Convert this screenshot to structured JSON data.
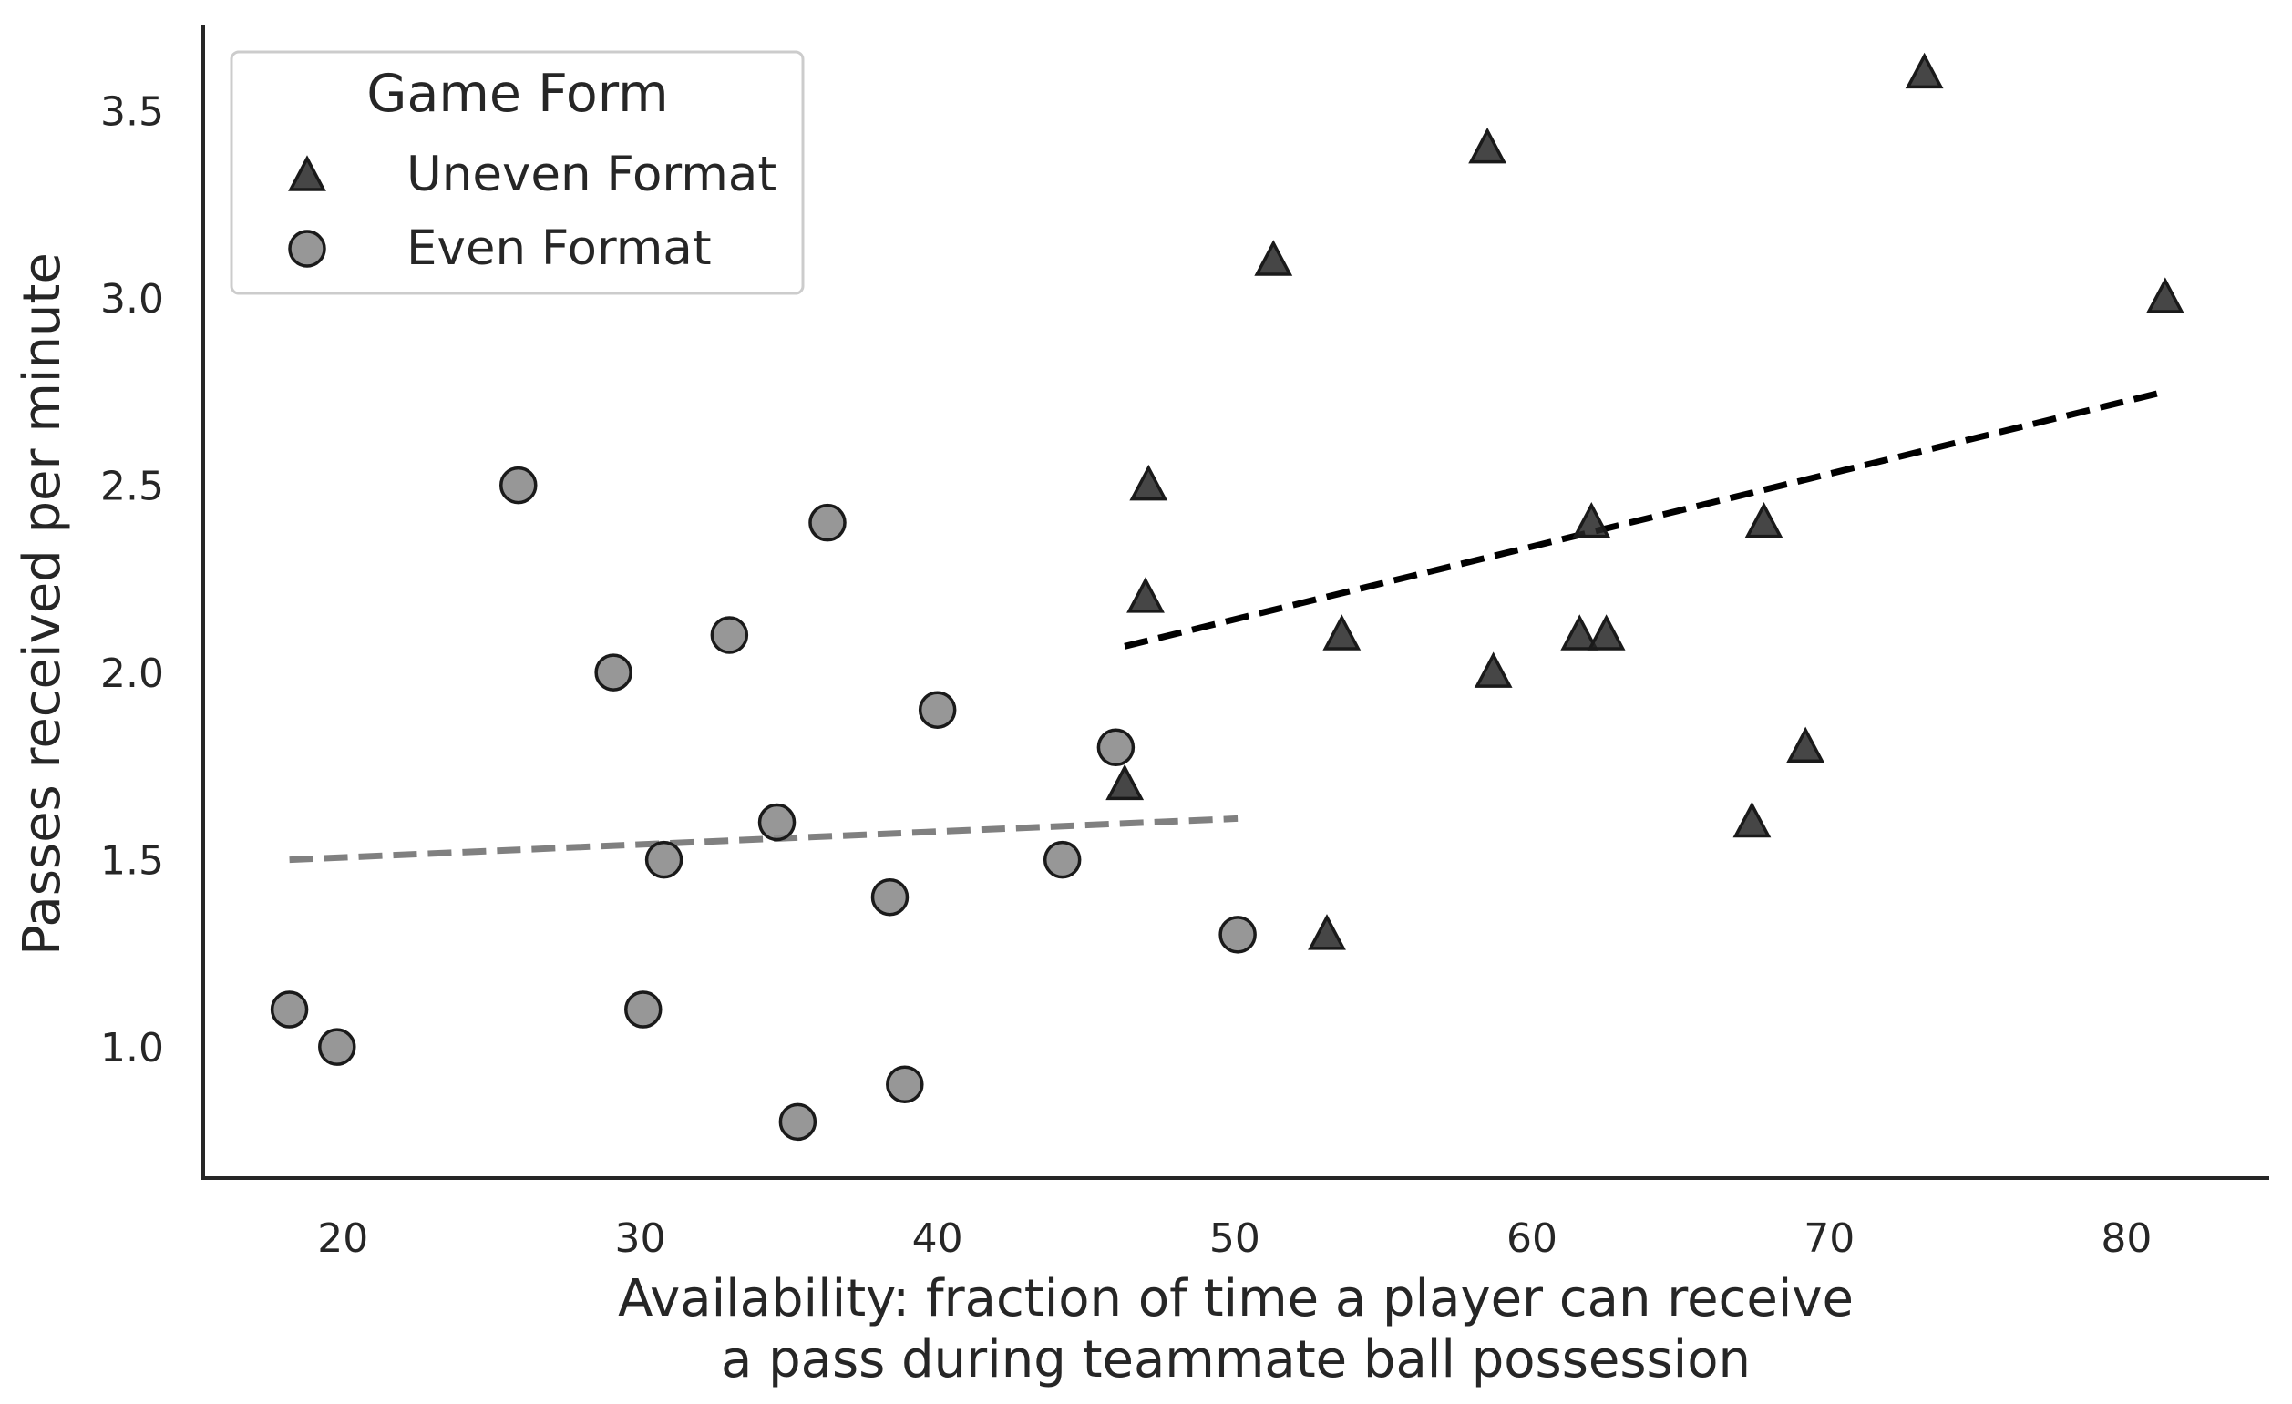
{
  "chart_data": {
    "type": "scatter",
    "xlabel": [
      "Availability: fraction of time a player can receive",
      "a pass during teammate ball possession"
    ],
    "ylabel": "Passes received per minute",
    "xlim": [
      15.3,
      84.8
    ],
    "ylim": [
      0.65,
      3.73
    ],
    "xticks": [
      20,
      30,
      40,
      50,
      60,
      70,
      80
    ],
    "yticks": [
      1.0,
      1.5,
      2.0,
      2.5,
      3.0,
      3.5
    ],
    "ytick_labels": [
      "1.0",
      "1.5",
      "2.0",
      "2.5",
      "3.0",
      "3.5"
    ],
    "grid": false,
    "legend": {
      "title": "Game Form",
      "placement": "top-left",
      "entries": [
        "Uneven Format",
        "Even Format"
      ]
    },
    "series": [
      {
        "name": "Uneven Format",
        "marker": "triangle",
        "color": "#262626",
        "points": [
          [
            46.3,
            1.7
          ],
          [
            47.0,
            2.2
          ],
          [
            47.1,
            2.5
          ],
          [
            51.3,
            3.1
          ],
          [
            53.1,
            1.3
          ],
          [
            53.6,
            2.1
          ],
          [
            58.5,
            3.4
          ],
          [
            58.7,
            2.0
          ],
          [
            61.6,
            2.1
          ],
          [
            62.0,
            2.4
          ],
          [
            62.5,
            2.1
          ],
          [
            67.4,
            1.6
          ],
          [
            67.8,
            2.4
          ],
          [
            69.2,
            1.8
          ],
          [
            73.2,
            3.6
          ],
          [
            81.3,
            3.0
          ]
        ],
        "trend": {
          "x": [
            46.3,
            81.3
          ],
          "y": [
            2.07,
            2.75
          ],
          "color": "#000000"
        }
      },
      {
        "name": "Even Format",
        "marker": "circle",
        "color": "#8c8c8c",
        "points": [
          [
            18.2,
            1.1
          ],
          [
            19.8,
            1.0
          ],
          [
            25.9,
            2.5
          ],
          [
            29.1,
            2.0
          ],
          [
            30.1,
            1.1
          ],
          [
            30.8,
            1.5
          ],
          [
            33.0,
            2.1
          ],
          [
            34.6,
            1.6
          ],
          [
            35.3,
            0.8
          ],
          [
            36.3,
            2.4
          ],
          [
            38.4,
            1.4
          ],
          [
            38.9,
            0.9
          ],
          [
            40.0,
            1.9
          ],
          [
            44.2,
            1.5
          ],
          [
            46.0,
            1.8
          ],
          [
            50.1,
            1.3
          ]
        ],
        "trend": {
          "x": [
            18.2,
            50.1
          ],
          "y": [
            1.5,
            1.61
          ],
          "color": "#808080"
        }
      }
    ]
  }
}
